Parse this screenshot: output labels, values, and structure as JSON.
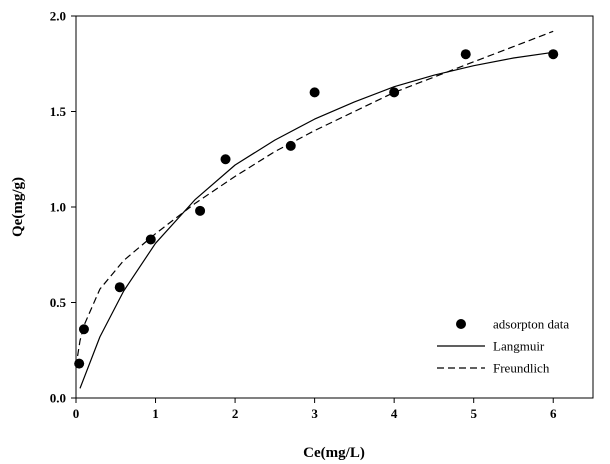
{
  "chart_data": {
    "type": "scatter",
    "xlabel": "Ce(mg/L)",
    "ylabel": "Qe(mg/g)",
    "xlim": [
      0,
      6.5
    ],
    "ylim": [
      0,
      2.0
    ],
    "x_ticks": [
      0,
      1,
      2,
      3,
      4,
      5,
      6
    ],
    "x_tick_labels": [
      "0",
      "1",
      "2",
      "3",
      "4",
      "5",
      "6"
    ],
    "y_ticks": [
      0,
      0.5,
      1.0,
      1.5,
      2.0
    ],
    "y_tick_labels": [
      "0.0",
      "0.5",
      "1.0",
      "1.5",
      "2.0"
    ],
    "grid": false,
    "legend_position": "bottom-right",
    "series": [
      {
        "name": "adsorpton data",
        "style": "markers",
        "color": "#000000",
        "x": [
          0.04,
          0.1,
          0.55,
          0.94,
          1.56,
          1.88,
          2.7,
          3.0,
          4.0,
          4.9,
          6.0
        ],
        "y": [
          0.18,
          0.36,
          0.58,
          0.83,
          0.98,
          1.25,
          1.32,
          1.6,
          1.6,
          1.8,
          1.8
        ]
      },
      {
        "name": "Langmuir",
        "style": "solid",
        "color": "#000000",
        "x": [
          0.05,
          0.3,
          0.6,
          1.0,
          1.5,
          2.0,
          2.5,
          3.0,
          3.5,
          4.0,
          4.5,
          5.0,
          5.5,
          6.0
        ],
        "y": [
          0.05,
          0.32,
          0.56,
          0.81,
          1.04,
          1.22,
          1.35,
          1.46,
          1.55,
          1.63,
          1.69,
          1.74,
          1.78,
          1.81
        ]
      },
      {
        "name": "Freundlich",
        "style": "dashed",
        "color": "#000000",
        "x": [
          0.02,
          0.05,
          0.1,
          0.3,
          0.6,
          1.0,
          1.5,
          2.0,
          2.5,
          3.0,
          3.5,
          4.0,
          4.5,
          5.0,
          5.5,
          6.0
        ],
        "y": [
          0.22,
          0.3,
          0.38,
          0.57,
          0.72,
          0.86,
          1.02,
          1.16,
          1.29,
          1.4,
          1.5,
          1.6,
          1.68,
          1.76,
          1.84,
          1.92
        ]
      }
    ]
  }
}
